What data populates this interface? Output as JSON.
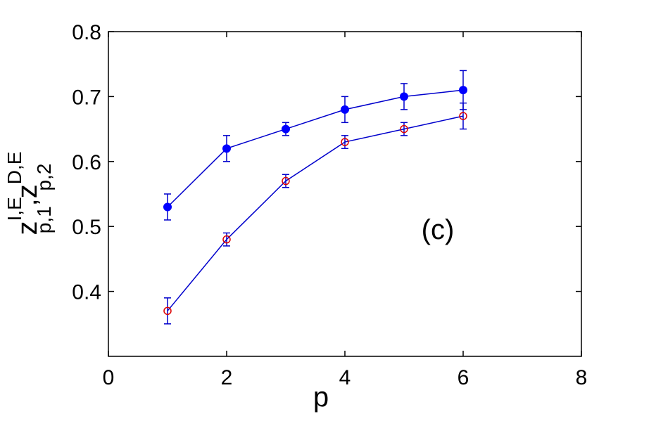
{
  "chart_data": {
    "type": "line",
    "xlabel": "p",
    "ylabel": {
      "base": "z",
      "sup1": "I,E",
      "sub1": "p,1",
      "sep": ",",
      "sup2": "D,E",
      "sub2": "p,2"
    },
    "annotation": "(c)",
    "xlim": [
      0,
      8
    ],
    "ylim": [
      0.3,
      0.8
    ],
    "xticks": [
      0,
      2,
      4,
      6,
      8
    ],
    "yticks": [
      0.4,
      0.5,
      0.6,
      0.7,
      0.8
    ],
    "xtick_labels": [
      "0",
      "2",
      "4",
      "6",
      "8"
    ],
    "ytick_labels": [
      "0.4",
      "0.5",
      "0.6",
      "0.7",
      "0.8"
    ],
    "grid": false,
    "series": [
      {
        "marker": "filled-circle",
        "line_color": "#0000cc",
        "marker_color": "#0000ff",
        "x": [
          1,
          2,
          3,
          4,
          5,
          6
        ],
        "y": [
          0.53,
          0.62,
          0.65,
          0.68,
          0.7,
          0.71
        ],
        "err": [
          0.02,
          0.02,
          0.01,
          0.02,
          0.02,
          0.03
        ]
      },
      {
        "marker": "open-circle",
        "line_color": "#0000cc",
        "marker_color": "#dd0000",
        "x": [
          1,
          2,
          3,
          4,
          5,
          6
        ],
        "y": [
          0.37,
          0.48,
          0.57,
          0.63,
          0.65,
          0.67
        ],
        "err": [
          0.02,
          0.01,
          0.01,
          0.01,
          0.01,
          0.02
        ]
      }
    ]
  }
}
